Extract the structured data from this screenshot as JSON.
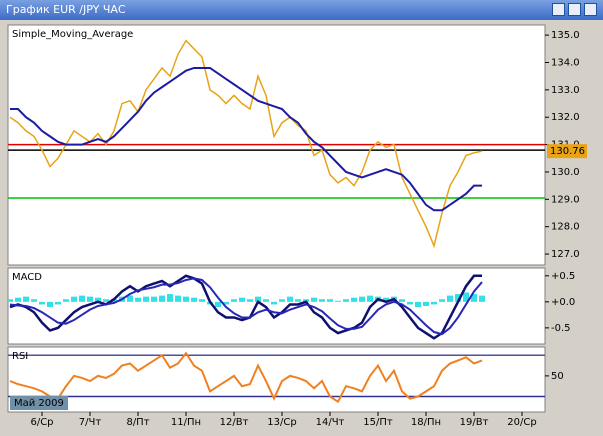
{
  "window": {
    "title": "График EUR /JPY  ЧАС"
  },
  "x_period_label": "Май 2009",
  "chart_data": [
    {
      "type": "line",
      "title": "Simple_Moving_Average",
      "categories": [
        null,
        null,
        null,
        null,
        "6/Ср",
        null,
        null,
        null,
        null,
        null,
        "7/Чт",
        null,
        null,
        null,
        null,
        null,
        "8/Пт",
        null,
        null,
        null,
        null,
        null,
        "11/Пн",
        null,
        null,
        null,
        null,
        null,
        "12/Вт",
        null,
        null,
        null,
        null,
        null,
        "13/Ср",
        null,
        null,
        null,
        null,
        null,
        "14/Чт",
        null,
        null,
        null,
        null,
        null,
        "15/Пт",
        null,
        null,
        null,
        null,
        null,
        "18/Пн",
        null,
        null,
        null,
        null,
        null,
        "19/Вт",
        null,
        null,
        null,
        null,
        null,
        "20/Ср",
        null,
        null
      ],
      "ylim": [
        126.6,
        135.37
      ],
      "yticks": [
        {
          "value": 127,
          "label": "127.0"
        },
        {
          "value": 128,
          "label": "128.0"
        },
        {
          "value": 129,
          "label": "129.0"
        },
        {
          "value": 130,
          "label": "130.0"
        },
        {
          "value": 131,
          "label": "131.0"
        },
        {
          "value": 132,
          "label": "132.0"
        },
        {
          "value": 133,
          "label": "133.0"
        },
        {
          "value": 134,
          "label": "134.0"
        },
        {
          "value": 135,
          "label": "135.0"
        }
      ],
      "hlines": [
        {
          "value": 131.0,
          "color": "#e00000"
        },
        {
          "value": 130.8,
          "color": "#000000"
        },
        {
          "value": 129.05,
          "color": "#00c000"
        }
      ],
      "series": [
        {
          "name": "EUR/JPY",
          "color": "#e8a317",
          "width": 1.5,
          "last_label": true,
          "values": [
            132.0,
            131.8,
            131.5,
            131.3,
            130.8,
            130.2,
            130.5,
            131.0,
            131.5,
            131.3,
            131.1,
            131.4,
            131.0,
            131.5,
            132.5,
            132.6,
            132.2,
            133.0,
            133.4,
            133.8,
            133.5,
            134.3,
            134.8,
            134.5,
            134.2,
            133.0,
            132.8,
            132.5,
            132.8,
            132.5,
            132.3,
            133.5,
            132.8,
            131.3,
            131.8,
            132.0,
            131.7,
            131.5,
            130.6,
            130.8,
            129.9,
            129.6,
            129.8,
            129.5,
            130.0,
            130.8,
            131.1,
            130.9,
            131.0,
            129.8,
            129.2,
            128.6,
            128.0,
            127.3,
            128.5,
            129.5,
            130.0,
            130.6,
            130.7,
            130.76,
            null,
            null,
            null,
            null,
            null,
            null,
            null
          ]
        },
        {
          "name": "Simple_Moving_Average",
          "color": "#1c1ca0",
          "width": 2,
          "values": [
            132.3,
            132.3,
            132.0,
            131.8,
            131.5,
            131.3,
            131.1,
            131.0,
            131.0,
            131.0,
            131.1,
            131.2,
            131.1,
            131.3,
            131.6,
            131.9,
            132.2,
            132.6,
            132.9,
            133.1,
            133.3,
            133.5,
            133.7,
            133.8,
            133.8,
            133.8,
            133.6,
            133.4,
            133.2,
            133.0,
            132.8,
            132.6,
            132.5,
            132.4,
            132.3,
            132.0,
            131.8,
            131.4,
            131.1,
            130.9,
            130.6,
            130.3,
            130.0,
            129.9,
            129.8,
            129.9,
            130.0,
            130.1,
            130.0,
            129.9,
            129.6,
            129.2,
            128.8,
            128.6,
            128.6,
            128.8,
            129.0,
            129.2,
            129.5,
            129.5,
            null,
            null,
            null,
            null,
            null,
            null,
            null
          ]
        }
      ]
    },
    {
      "type": "line",
      "title": "MACD",
      "ylim": [
        -0.81,
        0.65
      ],
      "yticks": [
        {
          "value": 0.5,
          "label": "+0.5"
        },
        {
          "value": 0,
          "label": "+0.0"
        },
        {
          "value": -0.5,
          "label": "-0.5"
        }
      ],
      "series": [
        {
          "name": "Histogram",
          "kind": "bar",
          "color": "#33e0e8",
          "values": [
            0.05,
            0.08,
            0.1,
            0.05,
            -0.05,
            -0.1,
            -0.05,
            0.05,
            0.1,
            0.12,
            0.1,
            0.08,
            0.05,
            0.05,
            0.1,
            0.12,
            0.08,
            0.1,
            0.1,
            0.12,
            0.15,
            0.12,
            0.1,
            0.08,
            0.05,
            -0.05,
            -0.1,
            -0.05,
            0.05,
            0.08,
            0.05,
            0.1,
            0.05,
            -0.05,
            0.05,
            0.1,
            0.05,
            0.05,
            0.08,
            0.05,
            0.05,
            0.02,
            0.05,
            0.08,
            0.1,
            0.12,
            0.1,
            0.08,
            0.1,
            0.05,
            -0.05,
            -0.1,
            -0.08,
            -0.05,
            0.05,
            0.12,
            0.15,
            0.18,
            0.15,
            0.12,
            null,
            null,
            null,
            null,
            null,
            null,
            null
          ]
        },
        {
          "name": "MACD",
          "color": "#101070",
          "width": 2.5,
          "values": [
            -0.1,
            -0.05,
            -0.1,
            -0.2,
            -0.4,
            -0.55,
            -0.5,
            -0.35,
            -0.2,
            -0.1,
            -0.05,
            0,
            -0.05,
            0.05,
            0.2,
            0.3,
            0.2,
            0.3,
            0.35,
            0.4,
            0.3,
            0.4,
            0.5,
            0.45,
            0.35,
            0,
            -0.2,
            -0.3,
            -0.3,
            -0.35,
            -0.3,
            0,
            -0.1,
            -0.3,
            -0.2,
            -0.05,
            -0.05,
            0,
            -0.2,
            -0.3,
            -0.5,
            -0.6,
            -0.55,
            -0.5,
            -0.4,
            -0.1,
            0.05,
            0,
            0.05,
            -0.1,
            -0.3,
            -0.5,
            -0.6,
            -0.7,
            -0.6,
            -0.3,
            0,
            0.3,
            0.5,
            0.5,
            null,
            null,
            null,
            null,
            null,
            null,
            null
          ]
        },
        {
          "name": "Signal",
          "color": "#2828b8",
          "width": 2,
          "values": [
            -0.05,
            -0.07,
            -0.08,
            -0.12,
            -0.2,
            -0.3,
            -0.4,
            -0.42,
            -0.35,
            -0.25,
            -0.15,
            -0.08,
            -0.05,
            -0.02,
            0.05,
            0.15,
            0.22,
            0.25,
            0.28,
            0.33,
            0.33,
            0.36,
            0.42,
            0.45,
            0.42,
            0.28,
            0.08,
            -0.1,
            -0.22,
            -0.3,
            -0.3,
            -0.2,
            -0.15,
            -0.2,
            -0.22,
            -0.15,
            -0.1,
            -0.05,
            -0.1,
            -0.18,
            -0.32,
            -0.45,
            -0.52,
            -0.52,
            -0.48,
            -0.32,
            -0.15,
            -0.05,
            0,
            -0.05,
            -0.15,
            -0.3,
            -0.45,
            -0.58,
            -0.62,
            -0.5,
            -0.3,
            -0.05,
            0.2,
            0.38,
            null,
            null,
            null,
            null,
            null,
            null,
            null
          ]
        }
      ]
    },
    {
      "type": "line",
      "title": "RSI",
      "ylim": [
        15,
        78
      ],
      "yticks": [
        50
      ],
      "hlines": [
        {
          "value": 70,
          "color": "#5050a0"
        },
        {
          "value": 30,
          "color": "#303090"
        }
      ],
      "series": [
        {
          "name": "RSI",
          "color": "#f08020",
          "width": 2,
          "values": [
            45,
            42,
            40,
            38,
            35,
            30,
            28,
            40,
            50,
            48,
            45,
            50,
            48,
            52,
            60,
            62,
            55,
            60,
            65,
            70,
            58,
            62,
            72,
            60,
            55,
            35,
            40,
            45,
            50,
            40,
            42,
            60,
            45,
            28,
            45,
            50,
            48,
            45,
            38,
            45,
            30,
            25,
            40,
            38,
            35,
            50,
            60,
            45,
            55,
            35,
            28,
            30,
            35,
            40,
            55,
            62,
            65,
            68,
            62,
            65,
            null,
            null,
            null,
            null,
            null,
            null,
            null
          ]
        }
      ]
    }
  ]
}
